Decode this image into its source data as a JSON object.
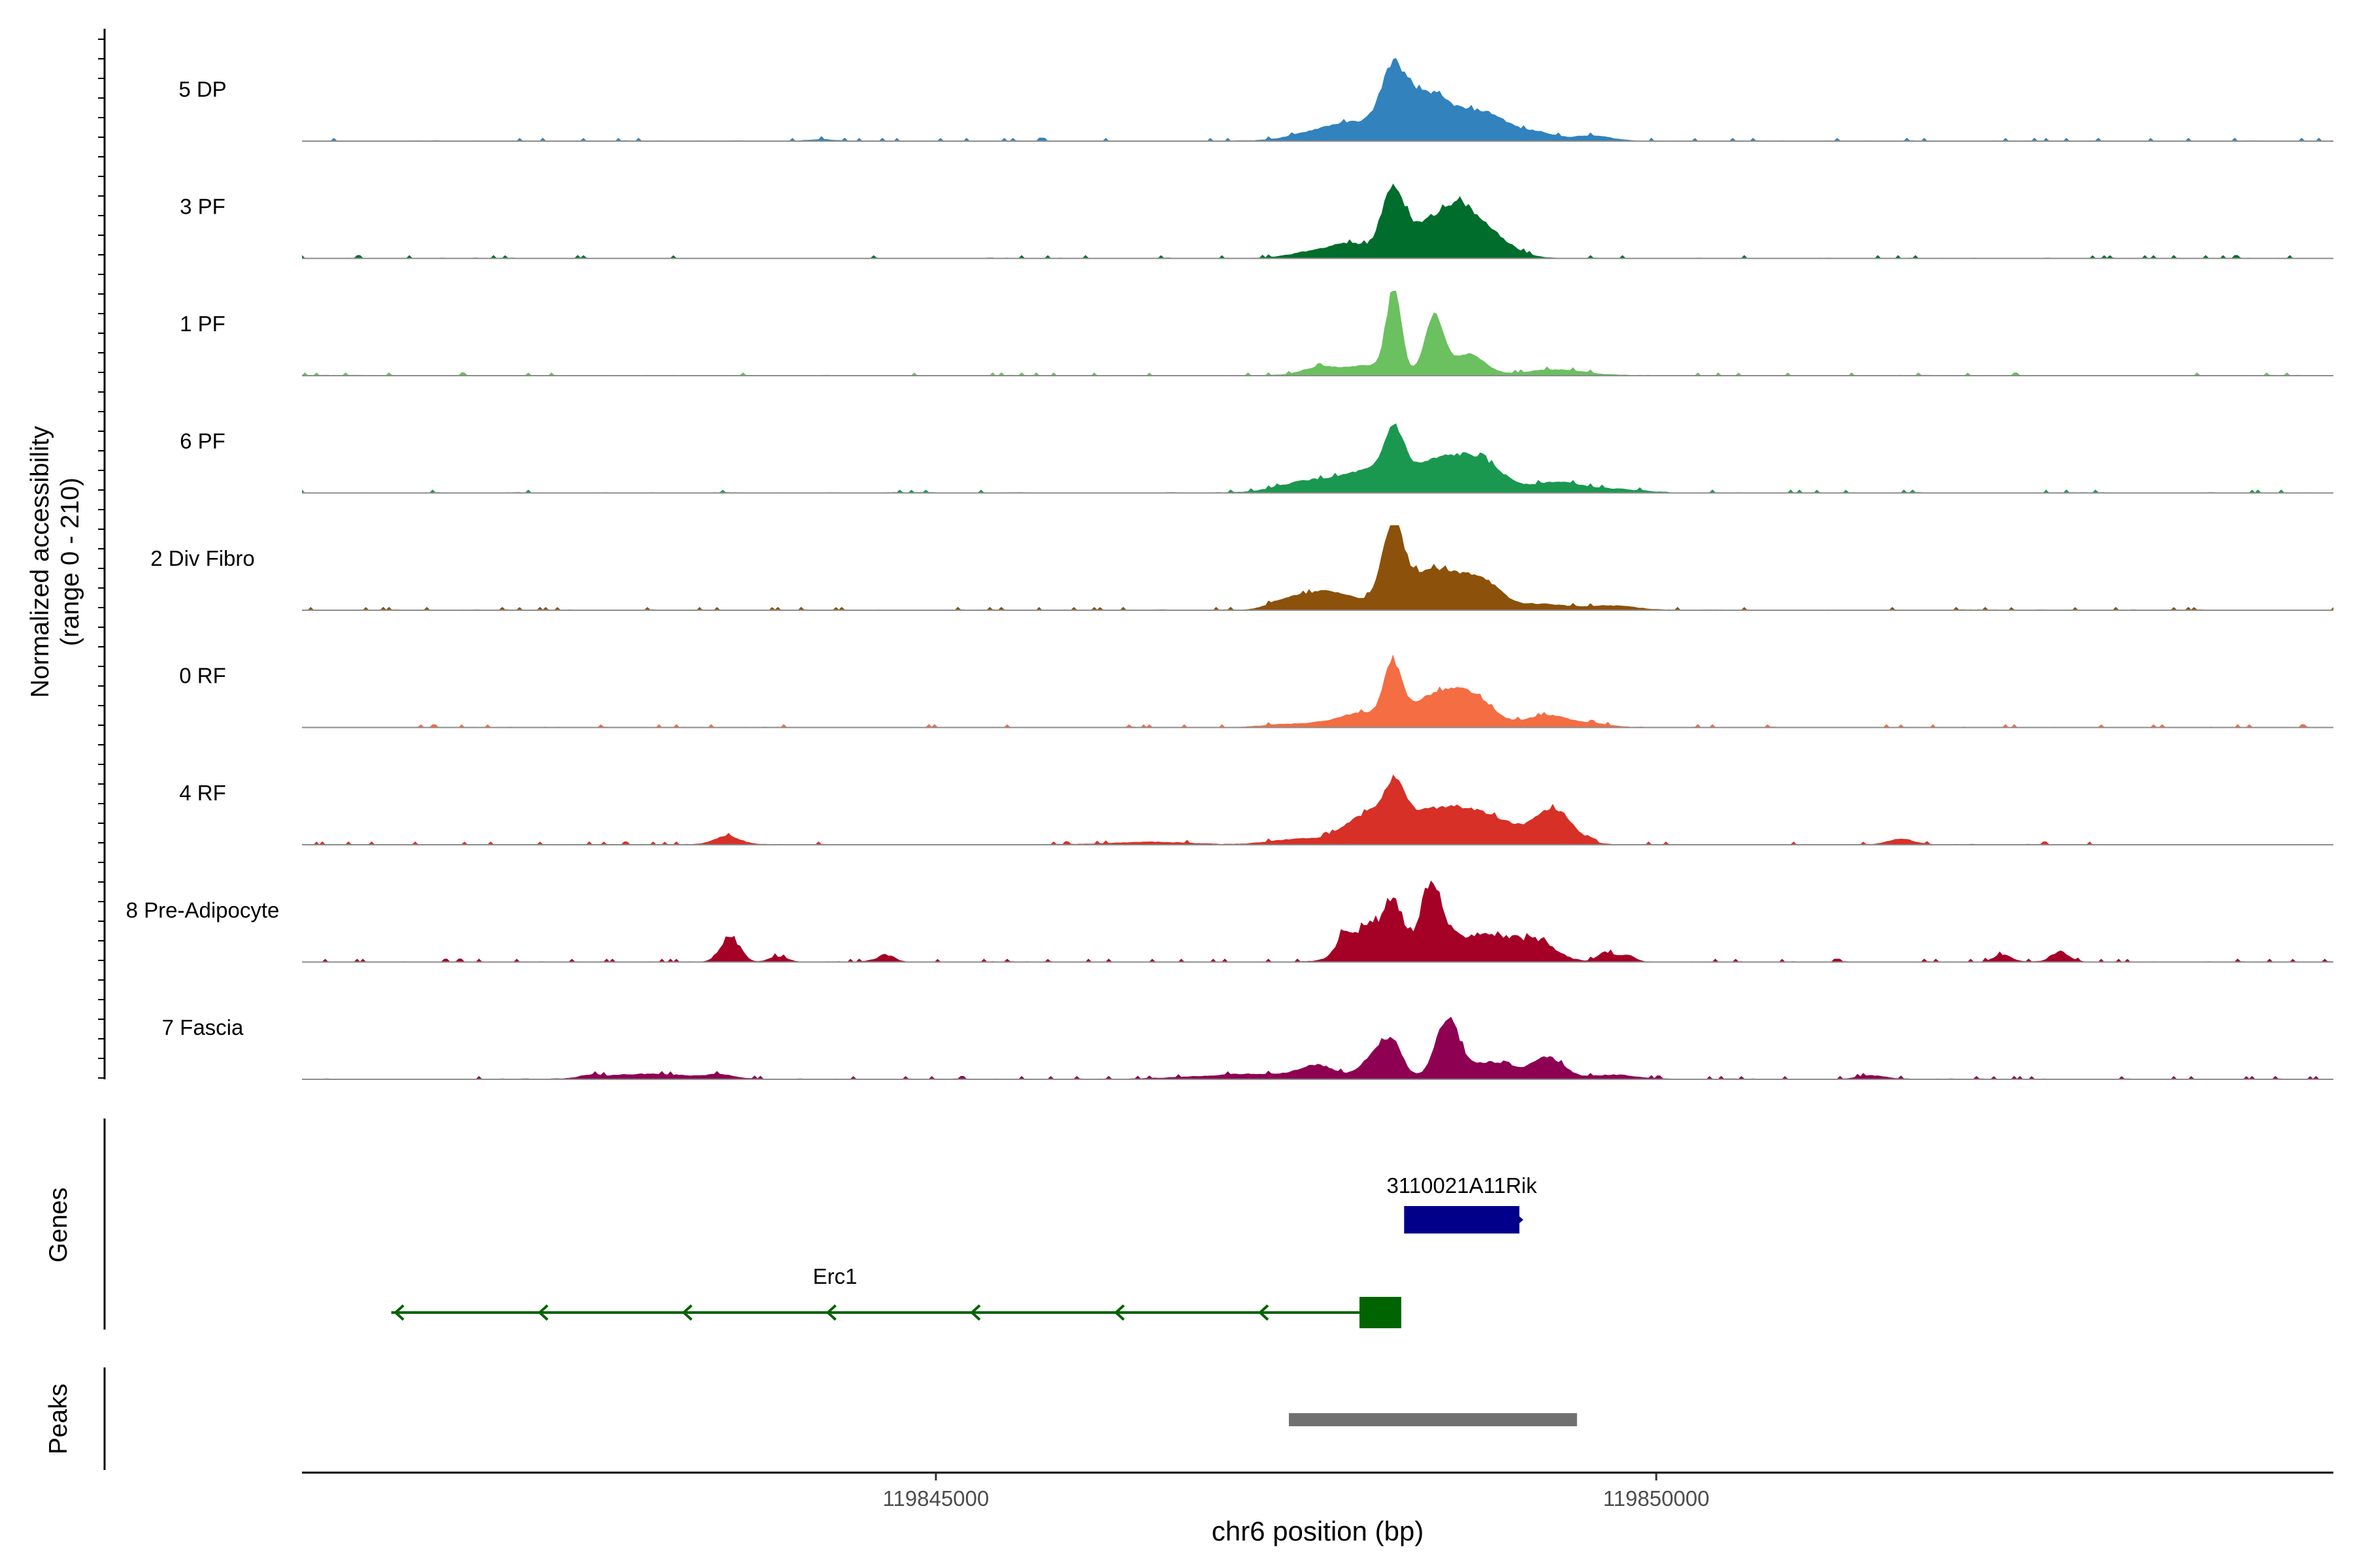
{
  "chart_data": {
    "type": "area",
    "title": "",
    "ylabel_line1": "Normalized accessibility",
    "ylabel_line2": "(range 0 - 210)",
    "y_range": [
      0,
      210
    ],
    "xlabel": "chr6 position (bp)",
    "x_range": [
      119840600,
      119854700
    ],
    "x_ticks": [
      {
        "value": 119845000,
        "label": "119845000"
      },
      {
        "value": 119850000,
        "label": "119850000"
      }
    ],
    "tracks": [
      {
        "name": "5 DP",
        "color": "#3182bd",
        "noise": 0.045,
        "seed": 11,
        "peaks": [
          [
            119847550,
            130,
            1
          ],
          [
            119847900,
            260,
            22
          ],
          [
            119848170,
            80,
            62
          ],
          [
            119848400,
            160,
            52
          ],
          [
            119848800,
            180,
            33
          ],
          [
            119849200,
            110,
            8
          ],
          [
            119849550,
            130,
            6
          ],
          [
            119844200,
            70,
            2
          ]
        ]
      },
      {
        "name": "3 PF",
        "color": "#006d2c",
        "noise": 0.06,
        "seed": 23,
        "peaks": [
          [
            119847550,
            130,
            5
          ],
          [
            119847850,
            150,
            17
          ],
          [
            119848170,
            75,
            70
          ],
          [
            119848500,
            210,
            50
          ],
          [
            119848800,
            170,
            25
          ],
          [
            119848650,
            60,
            10
          ]
        ]
      },
      {
        "name": "1 PF",
        "color": "#6bc060",
        "noise": 0.035,
        "seed": 37,
        "peaks": [
          [
            119847650,
            110,
            9
          ],
          [
            119848000,
            170,
            12
          ],
          [
            119848180,
            50,
            100
          ],
          [
            119848460,
            65,
            70
          ],
          [
            119848700,
            110,
            25
          ],
          [
            119849300,
            200,
            7
          ]
        ]
      },
      {
        "name": "6 PF",
        "color": "#1a9850",
        "noise": 0.05,
        "seed": 41,
        "peaks": [
          [
            119847600,
            200,
            14
          ],
          [
            119848000,
            170,
            22
          ],
          [
            119848180,
            65,
            55
          ],
          [
            119848500,
            220,
            38
          ],
          [
            119848800,
            150,
            25
          ],
          [
            119849300,
            170,
            12
          ],
          [
            119849700,
            200,
            4
          ]
        ]
      },
      {
        "name": "2 Div Fibro",
        "color": "#8c510a",
        "noise": 0.05,
        "seed": 53,
        "peaks": [
          [
            119847400,
            100,
            6
          ],
          [
            119847700,
            200,
            22
          ],
          [
            119848170,
            70,
            83
          ],
          [
            119848450,
            220,
            48
          ],
          [
            119848800,
            120,
            25
          ],
          [
            119849200,
            180,
            7
          ],
          [
            119849700,
            160,
            5
          ]
        ]
      },
      {
        "name": "0 RF",
        "color": "#f46d43",
        "noise": 0.04,
        "seed": 67,
        "peaks": [
          [
            119847500,
            180,
            4
          ],
          [
            119847950,
            170,
            16
          ],
          [
            119848170,
            60,
            62
          ],
          [
            119848500,
            200,
            40
          ],
          [
            119848750,
            130,
            20
          ],
          [
            119849250,
            160,
            14
          ],
          [
            119849600,
            100,
            3
          ]
        ]
      },
      {
        "name": "4 RF",
        "color": "#d73027",
        "noise": 0.05,
        "seed": 71,
        "peaks": [
          [
            119843550,
            90,
            10
          ],
          [
            119846500,
            250,
            3
          ],
          [
            119847500,
            180,
            6
          ],
          [
            119848000,
            170,
            28
          ],
          [
            119848180,
            65,
            40
          ],
          [
            119848500,
            300,
            40
          ],
          [
            119848900,
            250,
            15
          ],
          [
            119849300,
            120,
            37
          ],
          [
            119851700,
            80,
            7
          ]
        ]
      },
      {
        "name": "8 Pre-Adipocyte",
        "color": "#a50026",
        "noise": 0.12,
        "seed": 89,
        "peaks": [
          [
            119843570,
            65,
            31
          ],
          [
            119843900,
            60,
            6
          ],
          [
            119844650,
            60,
            8
          ],
          [
            119847840,
            60,
            22
          ],
          [
            119848100,
            170,
            50
          ],
          [
            119848170,
            45,
            25
          ],
          [
            119848450,
            70,
            72
          ],
          [
            119848800,
            260,
            35
          ],
          [
            119849200,
            110,
            14
          ],
          [
            119849650,
            55,
            11
          ],
          [
            119849800,
            50,
            8
          ],
          [
            119852400,
            60,
            8
          ],
          [
            119852800,
            60,
            12
          ]
        ]
      },
      {
        "name": "7 Fascia",
        "color": "#8e0152",
        "noise": 0.06,
        "seed": 97,
        "peaks": [
          [
            119842600,
            60,
            3
          ],
          [
            119843000,
            300,
            6
          ],
          [
            119843500,
            100,
            4
          ],
          [
            119847200,
            350,
            6
          ],
          [
            119847650,
            120,
            14
          ],
          [
            119848100,
            110,
            40
          ],
          [
            119848190,
            50,
            15
          ],
          [
            119848550,
            80,
            70
          ],
          [
            119848850,
            160,
            20
          ],
          [
            119849250,
            110,
            25
          ],
          [
            119849700,
            150,
            5
          ],
          [
            119851500,
            100,
            4
          ]
        ]
      }
    ],
    "genes": [
      {
        "name": "3110021A11Rik",
        "strand": "+",
        "color": "#00008b",
        "exon_start": 119848250,
        "exon_end": 119849050,
        "label_pos": 119848650
      },
      {
        "name": "Erc1",
        "strand": "-",
        "color": "#006400",
        "line_start": 119841220,
        "exon_start": 119847940,
        "exon_end": 119848230,
        "label_pos": 119844300,
        "arrows": [
          119841250,
          119842250,
          119843250,
          119844250,
          119845250,
          119846250,
          119847250
        ]
      }
    ],
    "panels": {
      "genes_label": "Genes",
      "peaks_label": "Peaks"
    },
    "peaks_region": {
      "start": 119847450,
      "end": 119849450,
      "color": "#707070"
    }
  }
}
